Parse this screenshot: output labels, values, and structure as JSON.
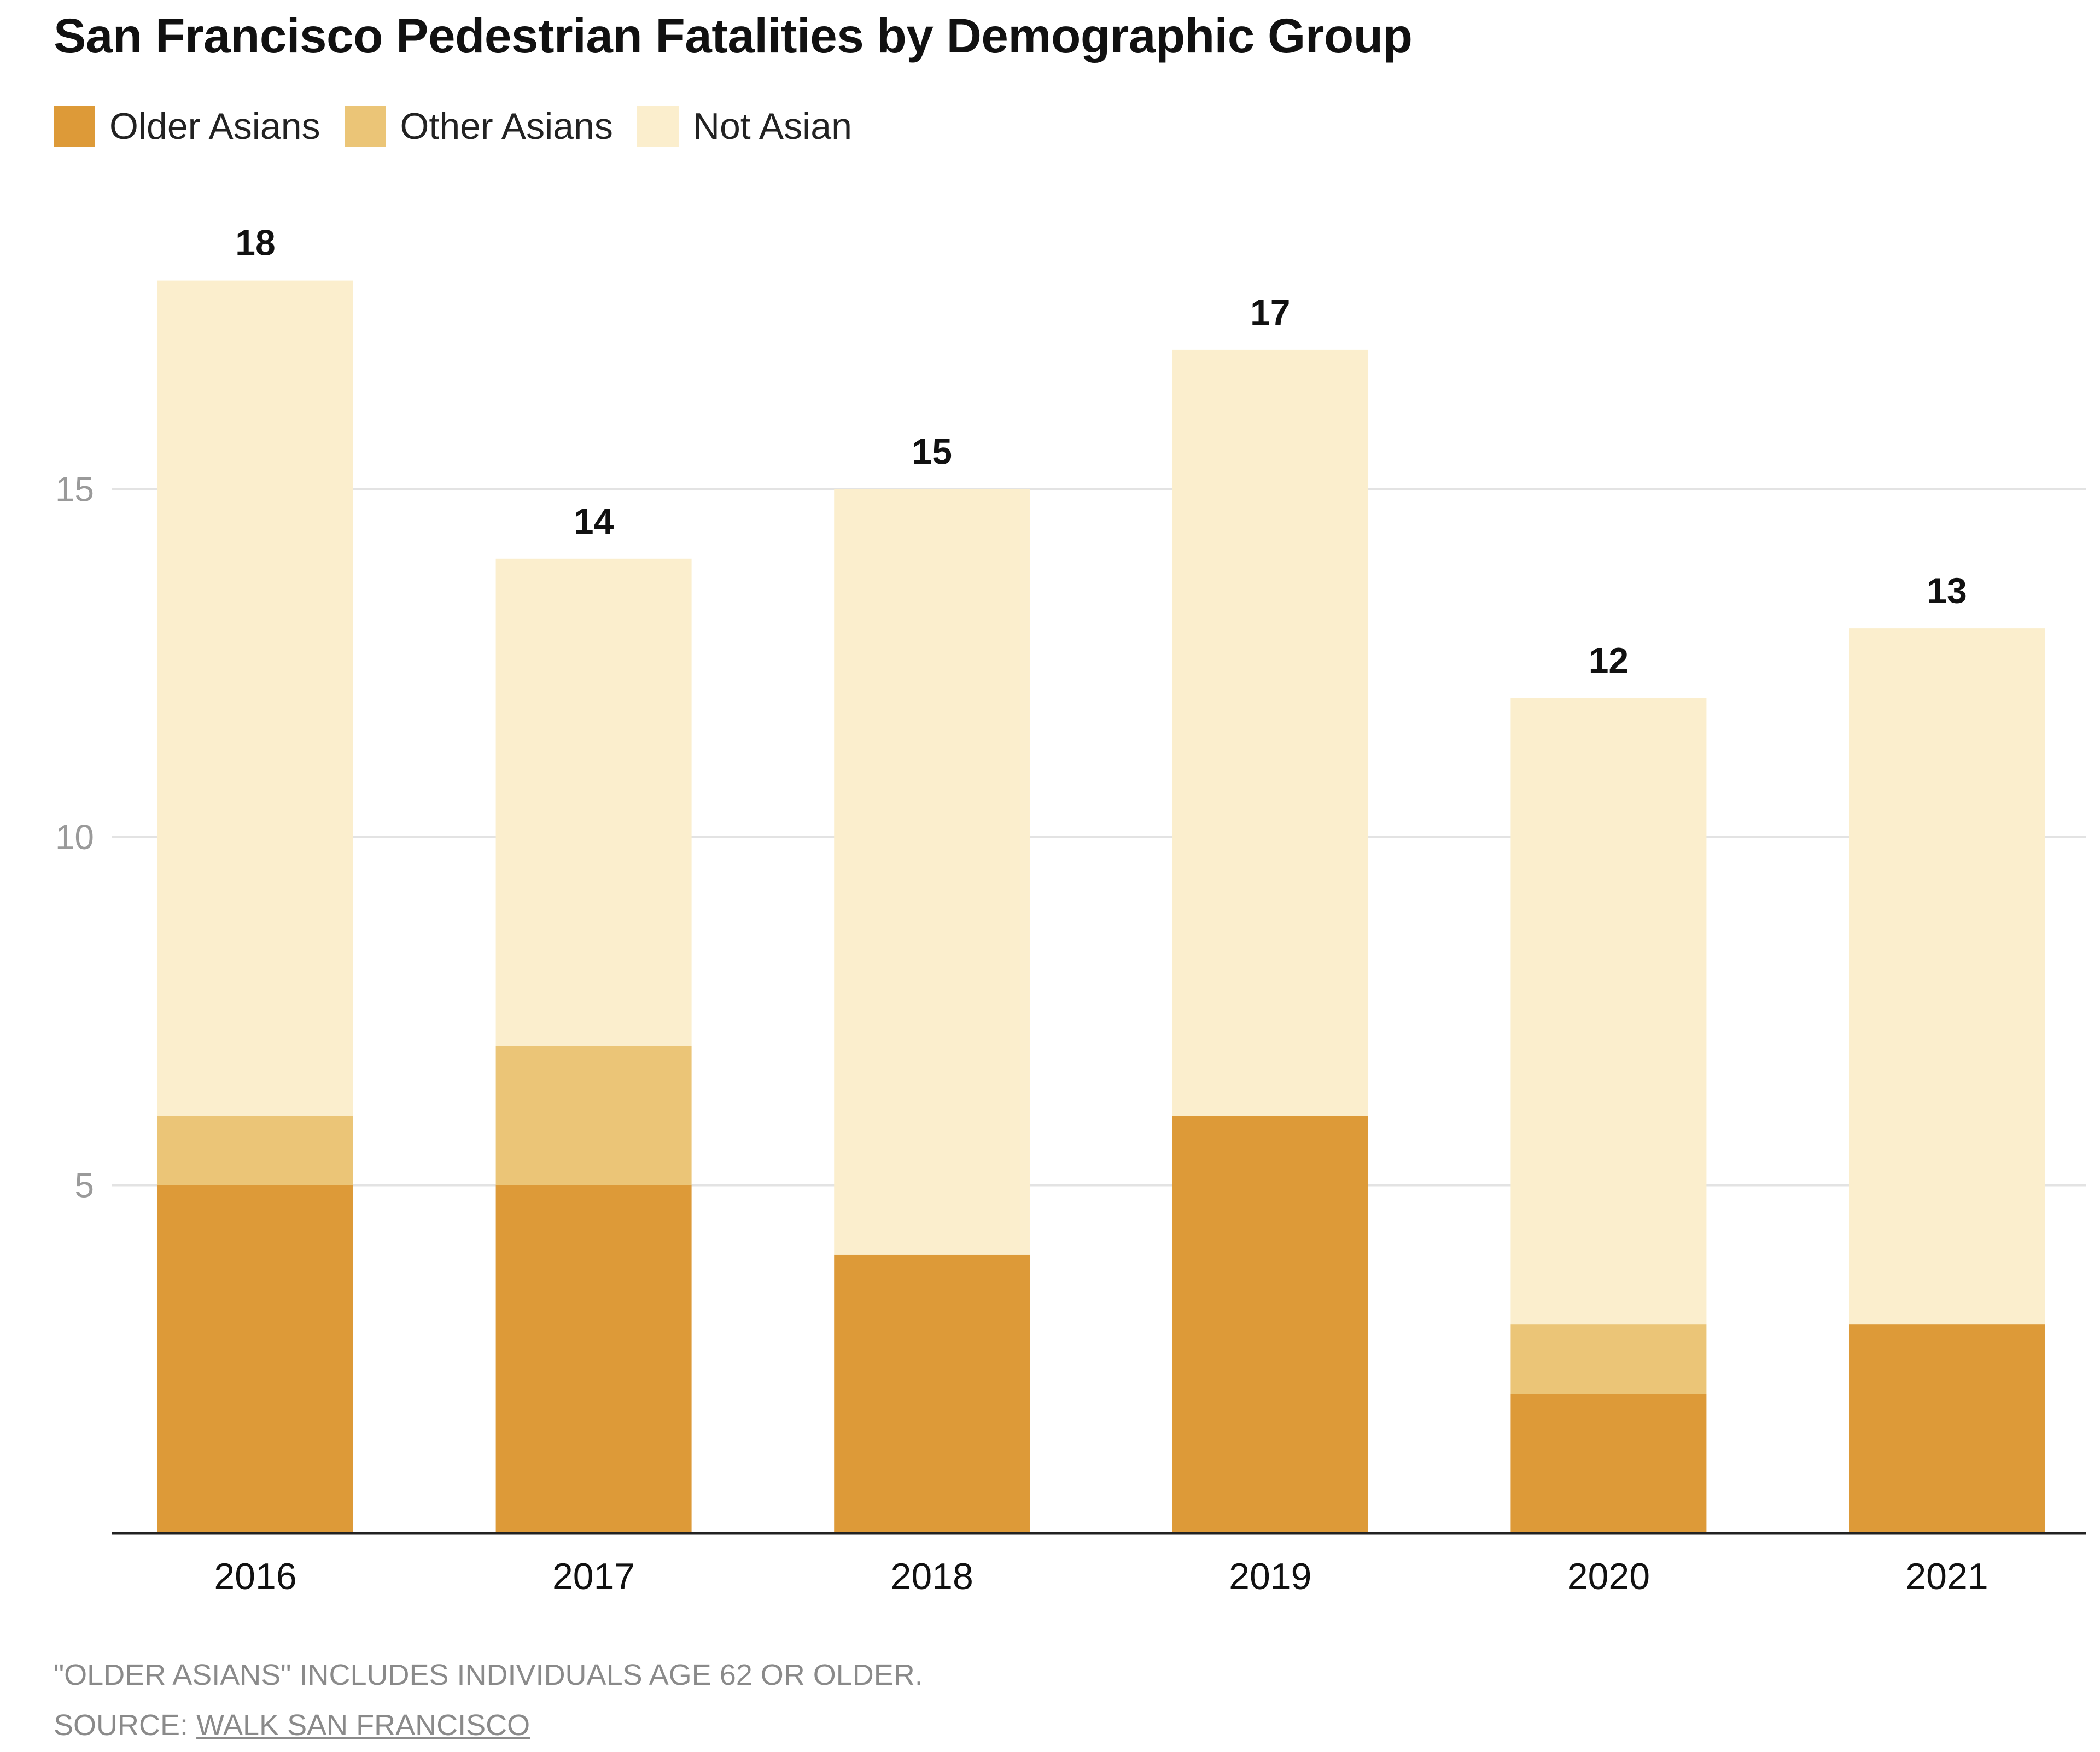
{
  "title": "San Francisco Pedestrian Fatalities by Demographic Group",
  "legend": [
    {
      "label": "Older Asians",
      "color": "#dd9a38"
    },
    {
      "label": "Other Asians",
      "color": "#ebc577"
    },
    {
      "label": "Not Asian",
      "color": "#fbeecd"
    }
  ],
  "notes": {
    "footnote": "\"OLDER ASIANS\" INCLUDES INDIVIDUALS AGE 62 OR OLDER.",
    "source_prefix": "SOURCE: ",
    "source_link": "WALK SAN FRANCISCO"
  },
  "chart_data": {
    "type": "bar",
    "stacked": true,
    "title": "San Francisco Pedestrian Fatalities by Demographic Group",
    "categories": [
      "2016",
      "2017",
      "2018",
      "2019",
      "2020",
      "2021"
    ],
    "series": [
      {
        "name": "Older Asians",
        "values": [
          5,
          5,
          4,
          6,
          2,
          3
        ],
        "color": "#dd9a38"
      },
      {
        "name": "Other Asians",
        "values": [
          1,
          2,
          0,
          0,
          1,
          0
        ],
        "color": "#ebc577"
      },
      {
        "name": "Not Asian",
        "values": [
          12,
          7,
          11,
          11,
          9,
          10
        ],
        "color": "#fbeecd"
      }
    ],
    "totals": [
      18,
      14,
      15,
      17,
      12,
      13
    ],
    "yticks": [
      5,
      10,
      15
    ],
    "ylim": [
      0,
      18
    ],
    "grid": true,
    "legend_position": "top-left",
    "xlabel": "",
    "ylabel": ""
  }
}
